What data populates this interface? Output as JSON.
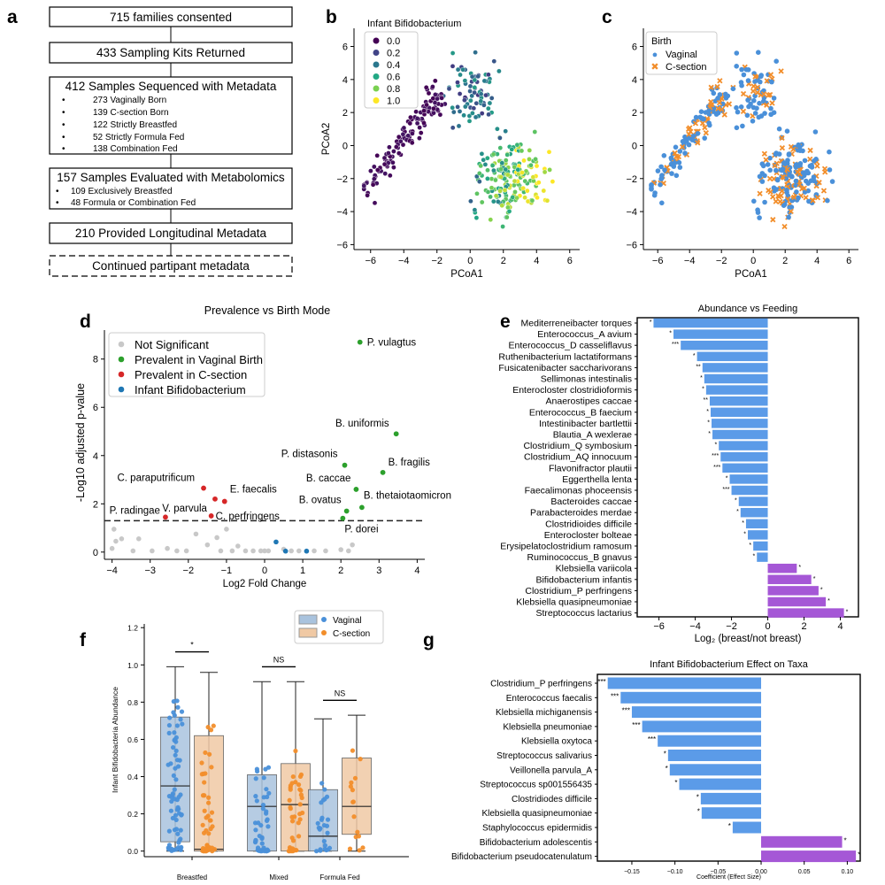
{
  "panel_labels": [
    "a",
    "b",
    "c",
    "d",
    "e",
    "f",
    "g"
  ],
  "colors": {
    "blue": "#4a90d9",
    "orange": "#f28e2b",
    "green": "#2ca02c",
    "red": "#d62728",
    "grey": "#c8c8c8",
    "bar_blue": "#5b9be8",
    "bar_purple": "#a557d6",
    "box_blue": "#a9c3de",
    "box_orange": "#f0c9a4"
  },
  "flowchart": {
    "box1": "715 families consented",
    "box2": "433 Sampling Kits Returned",
    "box3": {
      "title": "412 Samples Sequenced with Metadata",
      "items": [
        "273 Vaginally Born",
        "139 C-section Born",
        "122 Strictly Breastfed",
        "52 Strictly Formula Fed",
        "138 Combination Fed"
      ]
    },
    "box4": {
      "title": "157 Samples Evaluated with Metabolomics",
      "items": [
        "109 Exclusively Breastfed",
        "48 Formula or Combination Fed"
      ]
    },
    "box5": "210 Provided Longitudinal Metadata",
    "box6": "Continued partipant metadata",
    "bullet": "•"
  },
  "chart_data": [
    {
      "id": "b",
      "type": "scatter",
      "xlabel": "PCoA1",
      "ylabel": "PCoA2",
      "xlim": [
        -7,
        6.6
      ],
      "ylim": [
        -6.3,
        7.1
      ],
      "xticks": [
        -6,
        -4,
        -2,
        0,
        2,
        4,
        6
      ],
      "yticks": [
        -6,
        -4,
        -2,
        0,
        2,
        4,
        6
      ],
      "tick_labels_x": [
        "−6",
        "−4",
        "−2",
        "0",
        "2",
        "4",
        "6"
      ],
      "tick_labels_y": [
        "−6",
        "−4",
        "−2",
        "0",
        "2",
        "4",
        "6"
      ],
      "legend": {
        "title": "Infant Bifidobacterium",
        "entries": [
          "0.0",
          "0.2",
          "0.4",
          "0.6",
          "0.8",
          "1.0"
        ],
        "colors": [
          "#440154",
          "#414487",
          "#2a788e",
          "#22a884",
          "#7ad151",
          "#fde725"
        ]
      },
      "point_count": 410,
      "note": "410 samples colored by infant Bifidobacterium abundance (0 to 1, viridis); left arm (x<-2) mostly ~0, right cluster higher"
    },
    {
      "id": "c",
      "type": "scatter",
      "xlabel": "PCoA1",
      "ylabel": "",
      "xlim": [
        -6.9,
        6.6
      ],
      "ylim": [
        -6.3,
        7.1
      ],
      "xticks": [
        -6,
        -4,
        -2,
        0,
        2,
        4,
        6
      ],
      "yticks": [
        -6,
        -4,
        -2,
        0,
        2,
        4,
        6
      ],
      "tick_labels_x": [
        "−6",
        "−4",
        "−2",
        "0",
        "2",
        "4",
        "6"
      ],
      "tick_labels_y": [
        "−6",
        "−4",
        "−2",
        "0",
        "2",
        "4",
        "6"
      ],
      "legend": {
        "title": "Birth",
        "entries": [
          "Vaginal",
          "C-section"
        ],
        "markers": [
          "●",
          "✖"
        ]
      },
      "point_count": 410,
      "note": "Same PCoA ordination; ~2/3 vaginal (blue circles), ~1/3 C-section (orange x)"
    },
    {
      "id": "d",
      "type": "scatter",
      "title": "Prevalence vs Birth Mode",
      "xlabel": "Log2 Fold Change",
      "ylabel": "-Log10 adjusted p-value",
      "xlim": [
        -4.2,
        4.2
      ],
      "ylim": [
        -0.3,
        9.2
      ],
      "xticks": [
        -4,
        -3,
        -2,
        -1,
        0,
        1,
        2,
        3,
        4
      ],
      "yticks": [
        0,
        2,
        4,
        6,
        8
      ],
      "tick_labels_x": [
        "−4",
        "−3",
        "−2",
        "−1",
        "0",
        "1",
        "2",
        "3",
        "4"
      ],
      "tick_labels_y": [
        "0",
        "2",
        "4",
        "6",
        "8"
      ],
      "threshold": 1.3,
      "legend": [
        "Not Significant",
        "Prevalent in Vaginal Birth",
        "Prevalent in C-section",
        "Infant Bifidobacterium"
      ],
      "labeled_points": [
        {
          "label": "P. vulagtus",
          "x": 2.5,
          "y": 8.7,
          "group": "vaginal"
        },
        {
          "label": "B. uniformis",
          "x": 3.45,
          "y": 4.9,
          "group": "vaginal"
        },
        {
          "label": "P. distasonis",
          "x": 2.1,
          "y": 3.6,
          "group": "vaginal"
        },
        {
          "label": "B. fragilis",
          "x": 3.1,
          "y": 3.3,
          "group": "vaginal"
        },
        {
          "label": "B. caccae",
          "x": 2.4,
          "y": 2.6,
          "group": "vaginal"
        },
        {
          "label": "B. thetaiotaomicron",
          "x": 2.55,
          "y": 1.85,
          "group": "vaginal"
        },
        {
          "label": "B. ovatus",
          "x": 2.15,
          "y": 1.7,
          "group": "vaginal"
        },
        {
          "label": "P. dorei",
          "x": 2.05,
          "y": 1.4,
          "group": "vaginal"
        },
        {
          "label": "C. paraputrificum",
          "x": -1.6,
          "y": 2.65,
          "group": "csection"
        },
        {
          "label": "V. parvula",
          "x": -1.3,
          "y": 2.2,
          "group": "csection"
        },
        {
          "label": "E. faecalis",
          "x": -1.05,
          "y": 2.1,
          "group": "csection"
        },
        {
          "label": "C. perfringens",
          "x": -1.4,
          "y": 1.5,
          "group": "csection"
        },
        {
          "label": "P. radingae",
          "x": -2.6,
          "y": 1.45,
          "group": "csection"
        }
      ],
      "bifido_points": [
        {
          "x": 0.3,
          "y": 0.42
        },
        {
          "x": 1.1,
          "y": 0.04
        },
        {
          "x": 0.55,
          "y": 0.04
        }
      ],
      "nonsig_points": [
        {
          "x": -4.0,
          "y": 0.15
        },
        {
          "x": -3.95,
          "y": 0.95
        },
        {
          "x": -3.9,
          "y": 0.45
        },
        {
          "x": -3.75,
          "y": 0.55
        },
        {
          "x": -3.45,
          "y": 0.05
        },
        {
          "x": -3.3,
          "y": 0.55
        },
        {
          "x": -2.95,
          "y": 0.05
        },
        {
          "x": -2.55,
          "y": 0.15
        },
        {
          "x": -2.05,
          "y": 0.05
        },
        {
          "x": -1.8,
          "y": 0.75
        },
        {
          "x": -1.5,
          "y": 0.3
        },
        {
          "x": -1.25,
          "y": 0.6
        },
        {
          "x": -1.0,
          "y": 0.95
        },
        {
          "x": -0.85,
          "y": 0.05
        },
        {
          "x": -0.7,
          "y": 0.25
        },
        {
          "x": -0.5,
          "y": 0.05
        },
        {
          "x": -0.3,
          "y": 0.05
        },
        {
          "x": -0.1,
          "y": 0.05
        },
        {
          "x": 0.1,
          "y": 0.05
        },
        {
          "x": 0.5,
          "y": 0.12
        },
        {
          "x": 0.7,
          "y": 0.05
        },
        {
          "x": 0.9,
          "y": 0.05
        },
        {
          "x": 1.3,
          "y": 0.05
        },
        {
          "x": 1.6,
          "y": 0.05
        },
        {
          "x": 2.0,
          "y": 0.1
        },
        {
          "x": 2.3,
          "y": 0.3
        },
        {
          "x": -1.15,
          "y": 0.05
        },
        {
          "x": -2.3,
          "y": 0.05
        },
        {
          "x": 0.0,
          "y": 0.05
        },
        {
          "x": 2.2,
          "y": 0.05
        }
      ]
    },
    {
      "id": "e",
      "type": "bar",
      "orientation": "horizontal",
      "title": "Abundance vs Feeding",
      "xlabel": "Log₂ (breast/not breast)",
      "xlim": [
        -7.2,
        5.0
      ],
      "xticks": [
        -6,
        -4,
        -2,
        0,
        2,
        4
      ],
      "tick_labels_x": [
        "−6",
        "−4",
        "−2",
        "0",
        "2",
        "4"
      ],
      "categories": [
        "Mediterreneibacter torques",
        "Enterococcus_A avium",
        "Enterococcus_D casseliflavus",
        "Ruthenibacterium lactatiformans",
        "Fusicatenibacter saccharivorans",
        "Sellimonas intestinalis",
        "Enterocloster clostridioformis",
        "Anaerostipes caccae",
        "Enterococcus_B faecium",
        "Intestinibacter bartlettii",
        "Blautia_A wexlerae",
        "Clostridium_Q symbosium",
        "Clostridium_AQ innocuum",
        "Flavonifractor plautii",
        "Eggerthella lenta",
        "Faecalimonas phoceensis",
        "Bacteroides caccae",
        "Parabacteroides merdae",
        "Clostridioides difficile",
        "Enterocloster bolteae",
        "Erysipelatoclostridium ramosum",
        "Ruminococcus_B gnavus",
        "Klebsiella variicola",
        "Bifidobacterium infantis",
        "Clostridium_P perfringens",
        "Klebsiella quasipneumoniae",
        "Streptococcus lactarius"
      ],
      "values": [
        -6.3,
        -5.2,
        -4.8,
        -3.9,
        -3.6,
        -3.5,
        -3.4,
        -3.2,
        -3.15,
        -3.1,
        -3.05,
        -2.7,
        -2.6,
        -2.5,
        -2.1,
        -2.0,
        -1.6,
        -1.5,
        -1.2,
        -1.1,
        -0.8,
        -0.6,
        1.6,
        2.4,
        2.8,
        3.2,
        4.2
      ],
      "significance": [
        "*",
        "*",
        "***",
        "*",
        "**",
        "*",
        "*",
        "**",
        "*",
        "*",
        "*",
        "*",
        "***",
        "***",
        "*",
        "***",
        "*",
        "*",
        "*",
        "*",
        "*",
        "*",
        "*",
        "*",
        "*",
        "*",
        "*"
      ]
    },
    {
      "id": "f",
      "type": "box",
      "xlabel": "",
      "ylabel": "Infant Bifidobacteria Abundance",
      "ylim": [
        -0.03,
        1.22
      ],
      "yticks": [
        0.0,
        0.2,
        0.4,
        0.6,
        0.8,
        1.0,
        1.2
      ],
      "tick_labels_y": [
        "0.0",
        "0.2",
        "0.4",
        "0.6",
        "0.8",
        "1.0",
        "1.2"
      ],
      "categories": [
        "Breastfed",
        "Mixed",
        "Formula Fed"
      ],
      "legend": [
        "Vaginal",
        "C-section"
      ],
      "series": [
        {
          "name": "Vaginal",
          "boxes": [
            {
              "min": 0.0,
              "q1": 0.05,
              "median": 0.35,
              "q3": 0.72,
              "max": 0.99,
              "n": 70
            },
            {
              "min": 0.0,
              "q1": 0.0,
              "median": 0.24,
              "q3": 0.41,
              "max": 0.91,
              "n": 45
            },
            {
              "min": 0.0,
              "q1": 0.0,
              "median": 0.08,
              "q3": 0.33,
              "max": 0.71,
              "n": 25
            }
          ]
        },
        {
          "name": "C-section",
          "boxes": [
            {
              "min": 0.0,
              "q1": 0.0,
              "median": 0.01,
              "q3": 0.62,
              "max": 0.96,
              "n": 45
            },
            {
              "min": 0.0,
              "q1": 0.0,
              "median": 0.25,
              "q3": 0.47,
              "max": 0.91,
              "n": 40
            },
            {
              "min": 0.0,
              "q1": 0.09,
              "median": 0.24,
              "q3": 0.5,
              "max": 0.73,
              "n": 15
            }
          ]
        }
      ],
      "significance": [
        "*",
        "NS",
        "NS"
      ]
    },
    {
      "id": "g",
      "type": "bar",
      "orientation": "horizontal",
      "title": "Infant Bifidobacterium Effect on Taxa",
      "xlabel": "Coefficient (Effect Size)",
      "xlim": [
        -0.19,
        0.115
      ],
      "xticks": [
        -0.15,
        -0.1,
        -0.05,
        0.0,
        0.05,
        0.1
      ],
      "tick_labels_x": [
        "−0.15",
        "−0.10",
        "−0.05",
        "0.00",
        "0.05",
        "0.10"
      ],
      "categories": [
        "Clostridium_P perfringens",
        "Enterococcus faecalis",
        "Klebsiella michiganensis",
        "Klebsiella pneumoniae",
        "Klebsiella oxytoca",
        "Streptococcus salivarius",
        "Veillonella parvula_A",
        "Streptococcus sp001556435",
        "Clostridiodes difficile",
        "Klebsiella quasipneumoniae",
        "Staphylococcus epidermidis",
        "Bifidobacterium adolescentis",
        "Bifidobacterium pseudocatenulatum"
      ],
      "values": [
        -0.178,
        -0.163,
        -0.15,
        -0.138,
        -0.12,
        -0.108,
        -0.106,
        -0.095,
        -0.07,
        -0.069,
        -0.033,
        0.094,
        0.11
      ],
      "significance": [
        "***",
        "***",
        "***",
        "***",
        "***",
        "*",
        "*",
        "*",
        "*",
        "*",
        "*",
        "*",
        "*"
      ]
    }
  ]
}
